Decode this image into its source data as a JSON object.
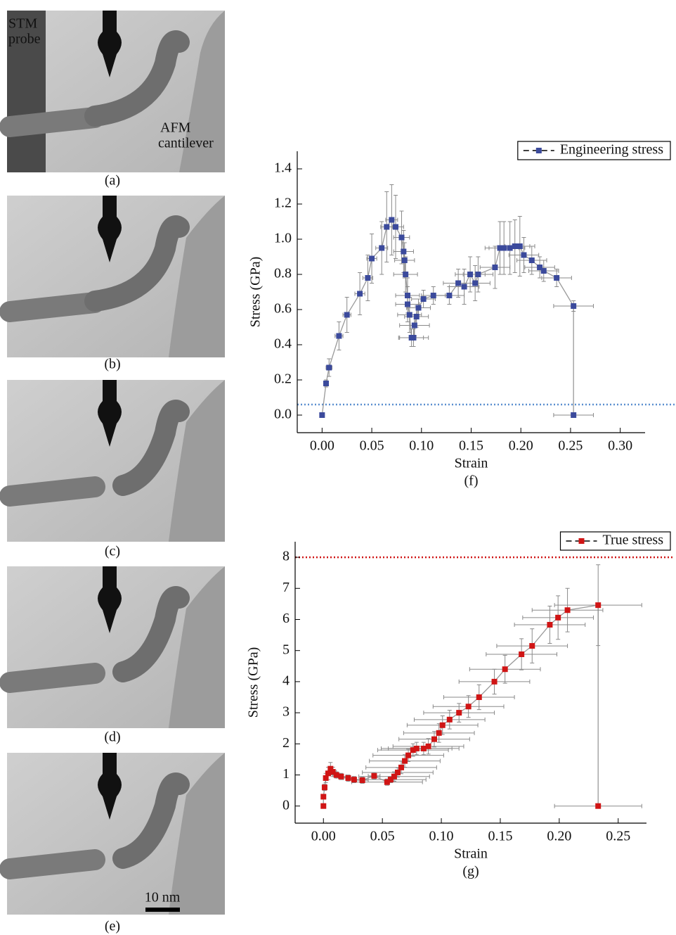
{
  "panels": [
    {
      "label": "(a)",
      "annotations": [
        "STM",
        "probe",
        "AFM",
        "cantilever"
      ]
    },
    {
      "label": "(b)"
    },
    {
      "label": "(c)"
    },
    {
      "label": "(d)"
    },
    {
      "label": "(e)",
      "scale_bar": "10 nm"
    }
  ],
  "chart_data": [
    {
      "type": "scatter",
      "caption": "(f)",
      "x_label": "Strain",
      "y_label": "Stress (GPa)",
      "x": [
        0,
        0.004,
        0.007,
        0.017,
        0.025,
        0.038,
        0.046,
        0.05,
        0.06,
        0.065,
        0.07,
        0.074,
        0.08,
        0.082,
        0.083,
        0.084,
        0.086,
        0.086,
        0.088,
        0.09,
        0.092,
        0.093,
        0.095,
        0.097,
        0.102,
        0.112,
        0.128,
        0.137,
        0.143,
        0.149,
        0.154,
        0.157,
        0.174,
        0.179,
        0.183,
        0.189,
        0.194,
        0.199,
        0.203,
        0.211,
        0.219,
        0.223,
        0.236,
        0.253,
        0.253
      ],
      "series": [
        {
          "name": "Engineering stress",
          "color": "#3b4a9c",
          "values": [
            0,
            0.18,
            0.27,
            0.45,
            0.57,
            0.69,
            0.78,
            0.89,
            0.95,
            1.07,
            1.11,
            1.07,
            1.01,
            0.93,
            0.88,
            0.8,
            0.68,
            0.63,
            0.57,
            0.44,
            0.44,
            0.51,
            0.56,
            0.61,
            0.66,
            0.68,
            0.68,
            0.75,
            0.73,
            0.8,
            0.75,
            0.8,
            0.84,
            0.95,
            0.95,
            0.95,
            0.96,
            0.96,
            0.91,
            0.88,
            0.84,
            0.82,
            0.78,
            0.62,
            0
          ],
          "yerr": [
            0,
            0.02,
            0.05,
            0.08,
            0.1,
            0.12,
            0.13,
            0.14,
            0.15,
            0.2,
            0.2,
            0.18,
            0.15,
            0.12,
            0.1,
            0.1,
            0.1,
            0.1,
            0.1,
            0.05,
            0.05,
            0.06,
            0.06,
            0.05,
            0.05,
            0.05,
            0.05,
            0.08,
            0.1,
            0.1,
            0.1,
            0.1,
            0.12,
            0.15,
            0.15,
            0.15,
            0.15,
            0.17,
            0.1,
            0.08,
            0.06,
            0.06,
            0.05,
            0.03,
            0
          ],
          "xerr": [
            0,
            0.002,
            0.003,
            0.004,
            0.004,
            0.005,
            0.005,
            0.005,
            0.006,
            0.006,
            0.006,
            0.008,
            0.008,
            0.01,
            0.01,
            0.012,
            0.012,
            0.012,
            0.012,
            0.012,
            0.015,
            0.015,
            0.012,
            0.012,
            0.012,
            0.012,
            0.015,
            0.015,
            0.015,
            0.015,
            0.015,
            0.015,
            0.015,
            0.015,
            0.015,
            0.015,
            0.015,
            0.015,
            0.015,
            0.015,
            0.015,
            0.015,
            0.015,
            0.02,
            0.02
          ]
        }
      ],
      "xlim": [
        -0.025,
        0.325
      ],
      "xticks": [
        {
          "value": 0,
          "label": "0.00"
        },
        0.05,
        {
          "value": 0.1,
          "label": "0.10"
        },
        0.15,
        {
          "value": 0.2,
          "label": "0.20"
        },
        0.25,
        {
          "value": 0.3,
          "label": "0.30"
        }
      ],
      "ylim": [
        -0.1,
        1.5
      ],
      "yticks": [
        {
          "value": 0,
          "label": "0.0"
        },
        0.2,
        0.4,
        0.6,
        0.8,
        {
          "value": 1,
          "label": "1.0"
        },
        1.2,
        1.4
      ],
      "hline": {
        "value": 0.06,
        "color": "#5b8fd0"
      },
      "legend": "upper right",
      "grid": false
    },
    {
      "type": "scatter",
      "caption": "(g)",
      "x_label": "Strain",
      "y_label": "Stress (GPa)",
      "x": [
        0,
        0,
        0.001,
        0.002,
        0.004,
        0.006,
        0.008,
        0.011,
        0.015,
        0.021,
        0.026,
        0.033,
        0.043,
        0.054,
        0.057,
        0.06,
        0.063,
        0.066,
        0.069,
        0.072,
        0.076,
        0.079,
        0.085,
        0.089,
        0.094,
        0.098,
        0.101,
        0.107,
        0.115,
        0.123,
        0.132,
        0.145,
        0.154,
        0.168,
        0.177,
        0.192,
        0.199,
        0.207,
        0.233,
        0.233
      ],
      "series": [
        {
          "name": "True stress",
          "color": "#d01515",
          "values": [
            0,
            0.3,
            0.6,
            0.9,
            1.05,
            1.2,
            1.1,
            1,
            0.95,
            0.9,
            0.85,
            0.83,
            0.97,
            0.77,
            0.85,
            0.95,
            1.08,
            1.24,
            1.45,
            1.63,
            1.8,
            1.85,
            1.85,
            1.92,
            2.15,
            2.35,
            2.6,
            2.78,
            3,
            3.2,
            3.5,
            4,
            4.4,
            4.88,
            5.15,
            5.83,
            6.06,
            6.3,
            6.46,
            0
          ],
          "yerr": [
            0,
            0.05,
            0.1,
            0.15,
            0.2,
            0.2,
            0.15,
            0.1,
            0.1,
            0.1,
            0.1,
            0.1,
            0.1,
            0.1,
            0.1,
            0.15,
            0.15,
            0.2,
            0.2,
            0.2,
            0.2,
            0.2,
            0.2,
            0.25,
            0.25,
            0.3,
            0.3,
            0.3,
            0.3,
            0.35,
            0.4,
            0.4,
            0.45,
            0.5,
            0.55,
            0.6,
            0.7,
            0.7,
            1.3,
            0
          ],
          "xerr": [
            0,
            0,
            0.001,
            0.001,
            0.002,
            0.002,
            0.003,
            0.003,
            0.004,
            0.004,
            0.005,
            0.005,
            0.005,
            0.03,
            0.03,
            0.03,
            0.03,
            0.03,
            0.03,
            0.03,
            0.03,
            0.03,
            0.03,
            0.03,
            0.03,
            0.03,
            0.03,
            0.03,
            0.03,
            0.03,
            0.03,
            0.03,
            0.03,
            0.03,
            0.03,
            0.03,
            0.03,
            0.03,
            0.037,
            0.037
          ]
        }
      ],
      "xlim": [
        -0.024,
        0.274
      ],
      "xticks": [
        {
          "value": 0,
          "label": "0.00"
        },
        0.05,
        {
          "value": 0.1,
          "label": "0.10"
        },
        0.15,
        {
          "value": 0.2,
          "label": "0.20"
        },
        0.25
      ],
      "ylim": [
        -0.55,
        8.5
      ],
      "yticks": [
        0,
        1,
        2,
        3,
        4,
        5,
        6,
        7,
        8
      ],
      "hline": {
        "value": 8,
        "color": "#d01515"
      },
      "legend": "upper right",
      "grid": false
    }
  ]
}
